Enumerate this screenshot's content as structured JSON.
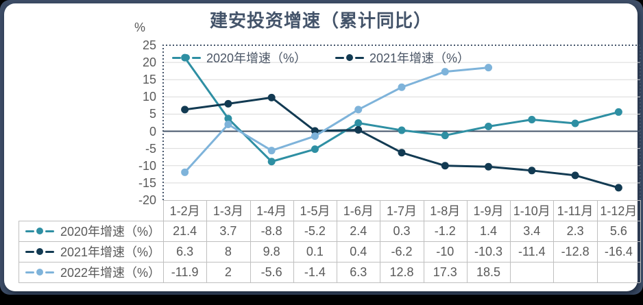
{
  "colors": {
    "frame_navy": "#3E4E68",
    "card_white": "#FFFFFF",
    "axis_line": "#44546A",
    "gridline": "#D9D9D9",
    "table_border": "#BFBFBF",
    "title_text": "#44546A",
    "body_text": "#595959",
    "series_2020": "#2E8FA3",
    "series_2021": "#123A52",
    "series_2022": "#7EB3DA"
  },
  "chart_data": {
    "type": "line",
    "title": "建安投资增速（累计同比）",
    "y_axis_unit_label": "%",
    "ylim": [
      -20,
      25
    ],
    "yticks": [
      25,
      20,
      15,
      10,
      5,
      0,
      -5,
      -10,
      -15,
      -20
    ],
    "grid": true,
    "legend_position": "top-center-inside",
    "categories": [
      "1-2月",
      "1-3月",
      "1-4月",
      "1-5月",
      "1-6月",
      "1-7月",
      "1-8月",
      "1-9月",
      "1-10月",
      "1-11月",
      "1-12月"
    ],
    "series": [
      {
        "name": "2020年增速（%）",
        "color": "#2E8FA3",
        "in_top_legend": true,
        "values": [
          21.4,
          3.7,
          -8.8,
          -5.2,
          2.4,
          0.3,
          -1.2,
          1.4,
          3.4,
          2.3,
          5.6
        ]
      },
      {
        "name": "2021年增速（%）",
        "color": "#123A52",
        "in_top_legend": true,
        "values": [
          6.3,
          8,
          9.8,
          0.1,
          0.4,
          -6.2,
          -10,
          -10.3,
          -11.4,
          -12.8,
          -16.4
        ]
      },
      {
        "name": "2022年增速（%）",
        "color": "#7EB3DA",
        "in_top_legend": false,
        "values": [
          -11.9,
          2,
          -5.6,
          -1.4,
          6.3,
          12.8,
          17.3,
          18.5
        ]
      }
    ]
  }
}
